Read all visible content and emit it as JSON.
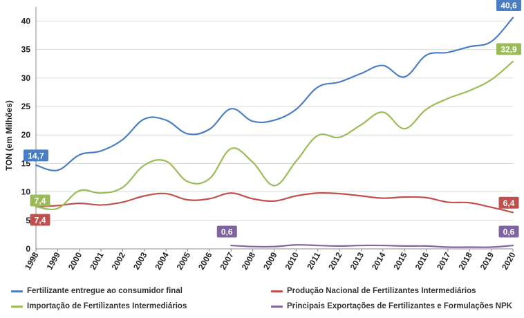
{
  "chart_data": {
    "type": "line",
    "title": "",
    "ylabel": "TON (em Milhões)",
    "xlabel": "",
    "ylim": [
      0,
      42
    ],
    "yticks": [
      0,
      5,
      10,
      15,
      20,
      25,
      30,
      35,
      40
    ],
    "categories": [
      "1998",
      "1999",
      "2000",
      "2001",
      "2002",
      "2003",
      "2004",
      "2005",
      "2006",
      "2007",
      "2008",
      "2009",
      "2010",
      "2011",
      "2012",
      "2013",
      "2014",
      "2015",
      "2016",
      "2017",
      "2018",
      "2019",
      "2020"
    ],
    "grid": "horizontal",
    "legend_position": "bottom",
    "series": [
      {
        "name": "Fertilizante entregue ao consumidor final",
        "color": "#4a7ec2",
        "values": [
          14.7,
          13.8,
          16.5,
          17.2,
          19.2,
          22.8,
          22.6,
          20.2,
          21.0,
          24.6,
          22.4,
          22.6,
          24.5,
          28.4,
          29.3,
          30.8,
          32.2,
          30.2,
          34.0,
          34.5,
          35.5,
          36.4,
          40.6
        ]
      },
      {
        "name": "Produção Nacional de Fertilizantes Intermediários",
        "color": "#c0504d",
        "values": [
          7.4,
          7.6,
          8.0,
          7.7,
          8.2,
          9.3,
          9.7,
          8.6,
          8.8,
          9.8,
          8.8,
          8.4,
          9.3,
          9.8,
          9.7,
          9.3,
          8.9,
          9.1,
          9.0,
          8.2,
          8.1,
          7.3,
          6.4
        ]
      },
      {
        "name": "Importação de Fertilizantes Intermediários",
        "color": "#9bbb59",
        "values": [
          7.4,
          7.1,
          10.2,
          9.8,
          10.8,
          14.7,
          15.4,
          11.8,
          12.3,
          17.6,
          15.2,
          11.1,
          15.4,
          19.9,
          19.6,
          21.8,
          24.0,
          21.1,
          24.5,
          26.4,
          27.8,
          29.7,
          32.9
        ]
      },
      {
        "name": "Principais Exportações de Fertilizantes e Formulações NPK",
        "color": "#8064a2",
        "values": [
          null,
          null,
          null,
          null,
          null,
          null,
          null,
          null,
          null,
          0.6,
          0.4,
          0.4,
          0.7,
          0.6,
          0.5,
          0.6,
          0.6,
          0.5,
          0.5,
          0.3,
          0.3,
          0.3,
          0.6
        ]
      }
    ],
    "annotations": [
      {
        "series": 0,
        "category": "1998",
        "label": "14,7"
      },
      {
        "series": 0,
        "category": "2020",
        "label": "40,6"
      },
      {
        "series": 2,
        "category": "1998",
        "label": "7,4"
      },
      {
        "series": 2,
        "category": "2020",
        "label": "32,9"
      },
      {
        "series": 1,
        "category": "1998",
        "label": "7,4"
      },
      {
        "series": 1,
        "category": "2020",
        "label": "6,4"
      },
      {
        "series": 3,
        "category": "2007",
        "label": "0,6"
      },
      {
        "series": 3,
        "category": "2020",
        "label": "0,6"
      }
    ]
  }
}
